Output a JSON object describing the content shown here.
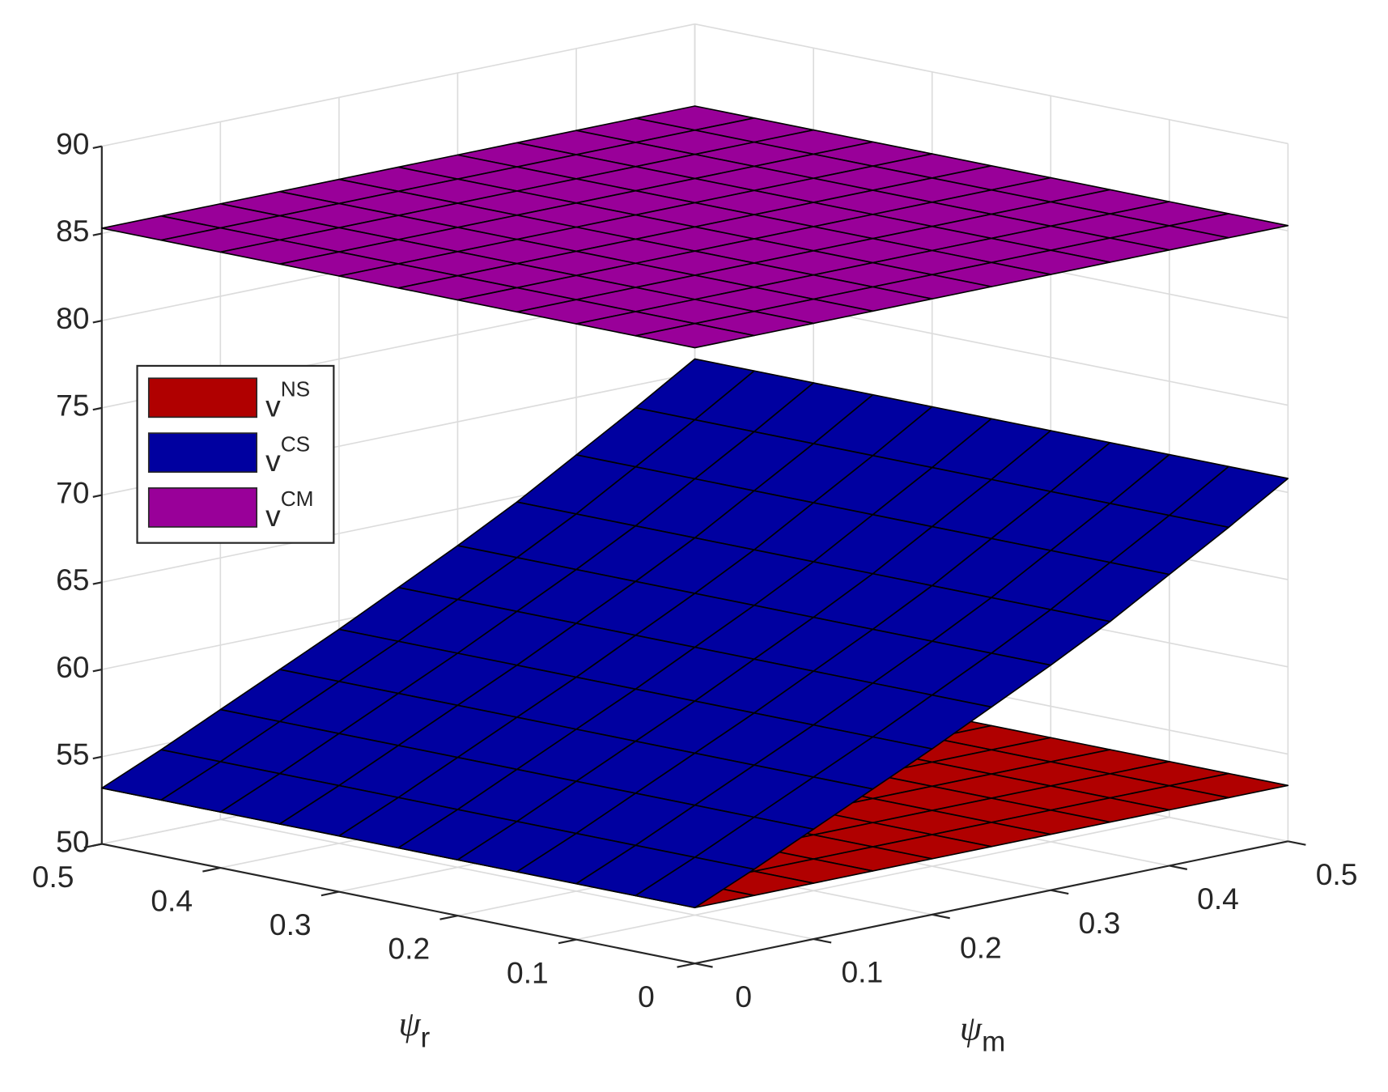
{
  "chart_data": {
    "type": "surface",
    "x_label": {
      "base": "ψ",
      "sub": "m"
    },
    "y_label": {
      "base": "ψ",
      "sub": "r"
    },
    "x": [
      0,
      0.05,
      0.1,
      0.15,
      0.2,
      0.25,
      0.3,
      0.35,
      0.4,
      0.45,
      0.5
    ],
    "y": [
      0,
      0.05,
      0.1,
      0.15,
      0.2,
      0.25,
      0.3,
      0.35,
      0.4,
      0.45,
      0.5
    ],
    "xlim": [
      0,
      0.5
    ],
    "ylim": [
      0,
      0.5
    ],
    "zlim": [
      50,
      90
    ],
    "xticks": [
      0,
      0.1,
      0.2,
      0.3,
      0.4,
      0.5
    ],
    "yticks": [
      0,
      0.1,
      0.2,
      0.3,
      0.4,
      0.5
    ],
    "zticks": [
      50,
      55,
      60,
      65,
      70,
      75,
      80,
      85,
      90
    ],
    "grid": true,
    "legend": "upper left",
    "series": [
      {
        "name": "v",
        "name_superscript": "NS",
        "color": "#b00000",
        "z": [
          [
            53.2,
            53.2,
            53.2,
            53.2,
            53.2,
            53.2,
            53.2,
            53.2,
            53.2,
            53.2,
            53.2
          ],
          [
            53.2,
            53.2,
            53.2,
            53.2,
            53.2,
            53.2,
            53.2,
            53.2,
            53.2,
            53.2,
            53.2
          ],
          [
            53.2,
            53.2,
            53.2,
            53.2,
            53.2,
            53.2,
            53.2,
            53.2,
            53.2,
            53.2,
            53.2
          ],
          [
            53.2,
            53.2,
            53.2,
            53.2,
            53.2,
            53.2,
            53.2,
            53.2,
            53.2,
            53.2,
            53.2
          ],
          [
            53.2,
            53.2,
            53.2,
            53.2,
            53.2,
            53.2,
            53.2,
            53.2,
            53.2,
            53.2,
            53.2
          ],
          [
            53.2,
            53.2,
            53.2,
            53.2,
            53.2,
            53.2,
            53.2,
            53.2,
            53.2,
            53.2,
            53.2
          ],
          [
            53.2,
            53.2,
            53.2,
            53.2,
            53.2,
            53.2,
            53.2,
            53.2,
            53.2,
            53.2,
            53.2
          ],
          [
            53.2,
            53.2,
            53.2,
            53.2,
            53.2,
            53.2,
            53.2,
            53.2,
            53.2,
            53.2,
            53.2
          ],
          [
            53.2,
            53.2,
            53.2,
            53.2,
            53.2,
            53.2,
            53.2,
            53.2,
            53.2,
            53.2,
            53.2
          ],
          [
            53.2,
            53.2,
            53.2,
            53.2,
            53.2,
            53.2,
            53.2,
            53.2,
            53.2,
            53.2,
            53.2
          ],
          [
            53.2,
            53.2,
            53.2,
            53.2,
            53.2,
            53.2,
            53.2,
            53.2,
            53.2,
            53.2,
            53.2
          ]
        ]
      },
      {
        "name": "v",
        "name_superscript": "CS",
        "color": "#0000a0",
        "z": [
          [
            53.2,
            54.7,
            56.3,
            57.9,
            59.5,
            61.2,
            62.9,
            64.7,
            66.7,
            68.7,
            70.8
          ],
          [
            53.2,
            54.7,
            56.3,
            57.9,
            59.5,
            61.2,
            62.9,
            64.7,
            66.7,
            68.7,
            70.8
          ],
          [
            53.2,
            54.7,
            56.3,
            57.9,
            59.5,
            61.2,
            62.9,
            64.7,
            66.7,
            68.7,
            70.8
          ],
          [
            53.2,
            54.7,
            56.3,
            57.9,
            59.5,
            61.2,
            62.9,
            64.7,
            66.7,
            68.7,
            70.8
          ],
          [
            53.2,
            54.7,
            56.3,
            57.9,
            59.5,
            61.2,
            62.9,
            64.7,
            66.7,
            68.7,
            70.8
          ],
          [
            53.2,
            54.7,
            56.3,
            57.9,
            59.5,
            61.2,
            62.9,
            64.7,
            66.7,
            68.7,
            70.8
          ],
          [
            53.2,
            54.7,
            56.3,
            57.9,
            59.5,
            61.2,
            62.9,
            64.7,
            66.7,
            68.7,
            70.8
          ],
          [
            53.2,
            54.7,
            56.3,
            57.9,
            59.5,
            61.2,
            62.9,
            64.7,
            66.7,
            68.7,
            70.8
          ],
          [
            53.2,
            54.7,
            56.3,
            57.9,
            59.5,
            61.2,
            62.9,
            64.7,
            66.7,
            68.7,
            70.8
          ],
          [
            53.2,
            54.7,
            56.3,
            57.9,
            59.5,
            61.2,
            62.9,
            64.7,
            66.7,
            68.7,
            70.8
          ],
          [
            53.2,
            54.7,
            56.3,
            57.9,
            59.5,
            61.2,
            62.9,
            64.7,
            66.7,
            68.7,
            70.8
          ]
        ]
      },
      {
        "name": "v",
        "name_superscript": "CM",
        "color": "#990099",
        "z": [
          [
            85.3,
            85.3,
            85.3,
            85.3,
            85.3,
            85.3,
            85.3,
            85.3,
            85.3,
            85.3,
            85.3
          ],
          [
            85.3,
            85.3,
            85.3,
            85.3,
            85.3,
            85.3,
            85.3,
            85.3,
            85.3,
            85.3,
            85.3
          ],
          [
            85.3,
            85.3,
            85.3,
            85.3,
            85.3,
            85.3,
            85.3,
            85.3,
            85.3,
            85.3,
            85.3
          ],
          [
            85.3,
            85.3,
            85.3,
            85.3,
            85.3,
            85.3,
            85.3,
            85.3,
            85.3,
            85.3,
            85.3
          ],
          [
            85.3,
            85.3,
            85.3,
            85.3,
            85.3,
            85.3,
            85.3,
            85.3,
            85.3,
            85.3,
            85.3
          ],
          [
            85.3,
            85.3,
            85.3,
            85.3,
            85.3,
            85.3,
            85.3,
            85.3,
            85.3,
            85.3,
            85.3
          ],
          [
            85.3,
            85.3,
            85.3,
            85.3,
            85.3,
            85.3,
            85.3,
            85.3,
            85.3,
            85.3,
            85.3
          ],
          [
            85.3,
            85.3,
            85.3,
            85.3,
            85.3,
            85.3,
            85.3,
            85.3,
            85.3,
            85.3,
            85.3
          ],
          [
            85.3,
            85.3,
            85.3,
            85.3,
            85.3,
            85.3,
            85.3,
            85.3,
            85.3,
            85.3,
            85.3
          ],
          [
            85.3,
            85.3,
            85.3,
            85.3,
            85.3,
            85.3,
            85.3,
            85.3,
            85.3,
            85.3,
            85.3
          ],
          [
            85.3,
            85.3,
            85.3,
            85.3,
            85.3,
            85.3,
            85.3,
            85.3,
            85.3,
            85.3,
            85.3
          ]
        ]
      }
    ]
  }
}
